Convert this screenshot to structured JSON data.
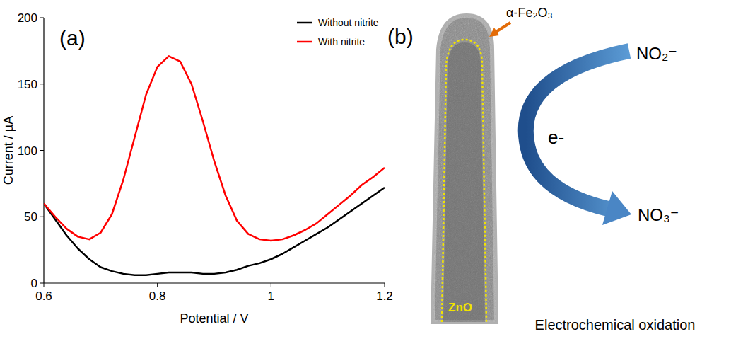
{
  "chart_data": {
    "type": "line",
    "title": "(a)",
    "x_label": "Potential / V",
    "y_label": "Current / µA",
    "x": [
      0.6,
      0.62,
      0.64,
      0.66,
      0.68,
      0.7,
      0.72,
      0.74,
      0.76,
      0.78,
      0.8,
      0.82,
      0.84,
      0.86,
      0.88,
      0.9,
      0.92,
      0.94,
      0.96,
      0.98,
      1.0,
      1.02,
      1.04,
      1.06,
      1.08,
      1.1,
      1.12,
      1.14,
      1.16,
      1.18,
      1.2
    ],
    "series": [
      {
        "name": "Without nitrite",
        "color": "#000000",
        "values": [
          60,
          48,
          36,
          26,
          18,
          12,
          9,
          7,
          6,
          6,
          7,
          8,
          8,
          8,
          7,
          7,
          8,
          10,
          13,
          15,
          18,
          22,
          27,
          32,
          37,
          42,
          48,
          54,
          60,
          66,
          72
        ]
      },
      {
        "name": "With nitrite",
        "color": "#ff0000",
        "values": [
          60,
          50,
          41,
          35,
          33,
          38,
          52,
          78,
          110,
          142,
          163,
          171,
          167,
          150,
          122,
          92,
          66,
          47,
          37,
          33,
          32,
          33,
          36,
          40,
          45,
          52,
          59,
          66,
          74,
          80,
          87
        ]
      }
    ],
    "xlim": [
      0.6,
      1.2
    ],
    "xticks": [
      0.6,
      0.8,
      1,
      1.2
    ],
    "ylim": [
      0,
      200
    ],
    "yticks": [
      0,
      50,
      100,
      150,
      200
    ],
    "grid": false,
    "legend": "upper right"
  },
  "diagram": {
    "label": "(b)",
    "shell_label": "α-Fe₂O₃",
    "core_label": "ZnO",
    "reactant": "NO₂⁻",
    "electron": "e-",
    "product": "NO₃⁻",
    "caption": "Electrochemical oxidation"
  }
}
